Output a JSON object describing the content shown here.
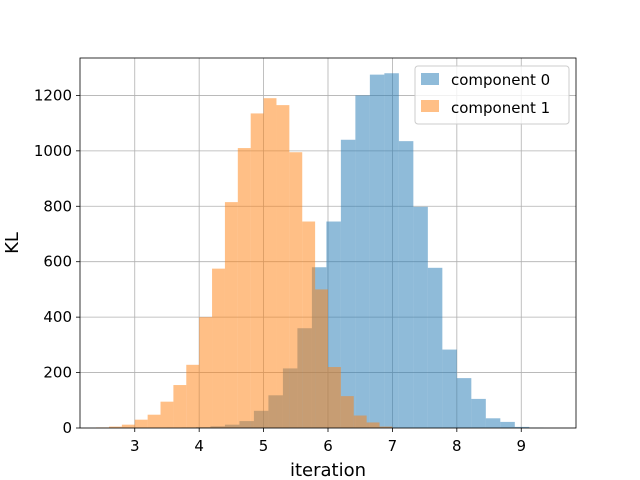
{
  "chart_data": {
    "type": "histogram",
    "title": "",
    "xlabel": "iteration",
    "ylabel": "KL",
    "xlim": [
      2.15,
      9.85
    ],
    "ylim": [
      0,
      1335
    ],
    "xticks": [
      3,
      4,
      5,
      6,
      7,
      8,
      9
    ],
    "yticks": [
      0,
      200,
      400,
      600,
      800,
      1000,
      1200
    ],
    "grid": true,
    "legend_position": "top-right",
    "series": [
      {
        "name": "component 0",
        "color": "#1f77b4",
        "alpha": 0.5,
        "bin_edges": [
          3.5,
          3.725,
          3.95,
          4.175,
          4.4,
          4.625,
          4.85,
          5.075,
          5.3,
          5.525,
          5.75,
          5.975,
          6.2,
          6.425,
          6.65,
          6.875,
          7.1,
          7.325,
          7.55,
          7.775,
          8.0,
          8.225,
          8.45,
          8.675,
          8.9,
          9.125,
          9.35
        ],
        "counts": [
          1,
          2,
          3,
          6,
          12,
          25,
          62,
          118,
          215,
          360,
          580,
          745,
          1040,
          1200,
          1275,
          1280,
          1035,
          798,
          578,
          283,
          180,
          105,
          35,
          22,
          4,
          1
        ]
      },
      {
        "name": "component 1",
        "color": "#ff7f0e",
        "alpha": 0.5,
        "bin_edges": [
          2.4,
          2.6,
          2.8,
          3.0,
          3.2,
          3.4,
          3.6,
          3.8,
          4.0,
          4.2,
          4.4,
          4.6,
          4.8,
          5.0,
          5.2,
          5.4,
          5.6,
          5.8,
          6.0,
          6.2,
          6.4,
          6.6,
          6.8,
          7.0
        ],
        "counts": [
          2,
          5,
          12,
          30,
          48,
          95,
          155,
          228,
          400,
          575,
          815,
          1010,
          1135,
          1190,
          1165,
          995,
          745,
          500,
          220,
          115,
          45,
          20,
          5
        ]
      }
    ]
  }
}
